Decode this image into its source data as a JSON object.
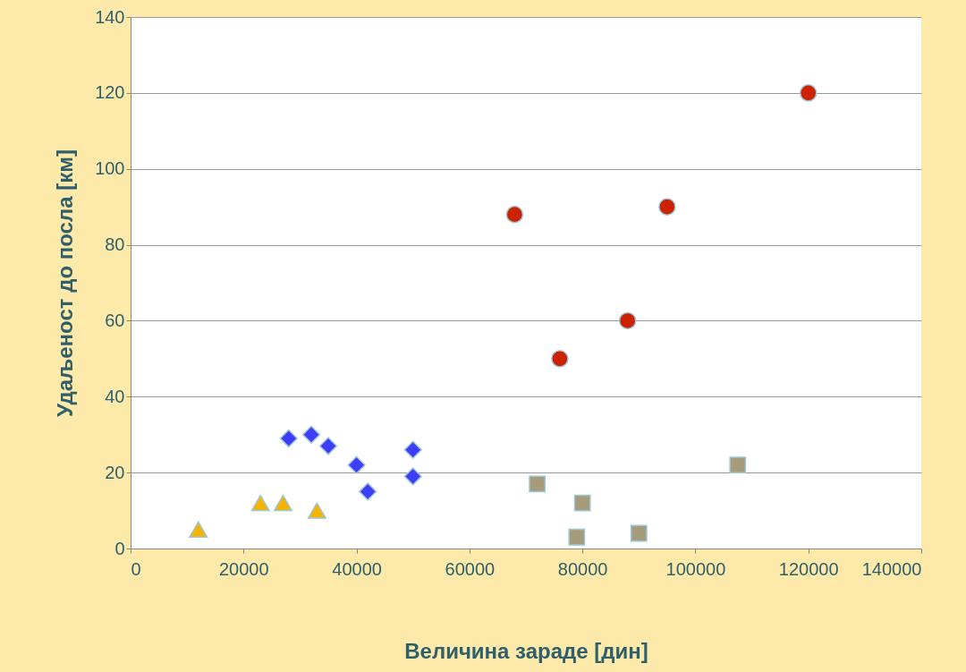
{
  "chart_data": {
    "type": "scatter",
    "xlabel": "Величина зараде [дин]",
    "ylabel": "Удаљеност до посла [км]",
    "xlim": [
      0,
      140000
    ],
    "xticks": [
      0,
      20000,
      40000,
      60000,
      80000,
      100000,
      120000,
      140000
    ],
    "ylim": [
      0,
      140
    ],
    "yticks": [
      0,
      20,
      40,
      60,
      80,
      100,
      120,
      140
    ],
    "grid": "y",
    "series": [
      {
        "color": "#f5b400",
        "marker": "triangle",
        "x": [
          12000,
          23000,
          27000,
          33000
        ],
        "values": [
          5,
          12,
          12,
          10
        ]
      },
      {
        "color": "#3d3dfa",
        "marker": "diamond",
        "x": [
          28000,
          32000,
          35000,
          40000,
          42000,
          50000,
          50000
        ],
        "values": [
          29,
          30,
          27,
          22,
          15,
          26,
          19
        ]
      },
      {
        "color": "#cc2200",
        "marker": "circle",
        "x": [
          68000,
          76000,
          88000,
          95000,
          120000
        ],
        "values": [
          88,
          50,
          60,
          90,
          120
        ]
      },
      {
        "color": "#a69b7a",
        "marker": "square",
        "x": [
          72000,
          80000,
          79000,
          90000,
          107500
        ],
        "values": [
          17,
          12,
          3,
          4,
          22
        ]
      }
    ]
  }
}
